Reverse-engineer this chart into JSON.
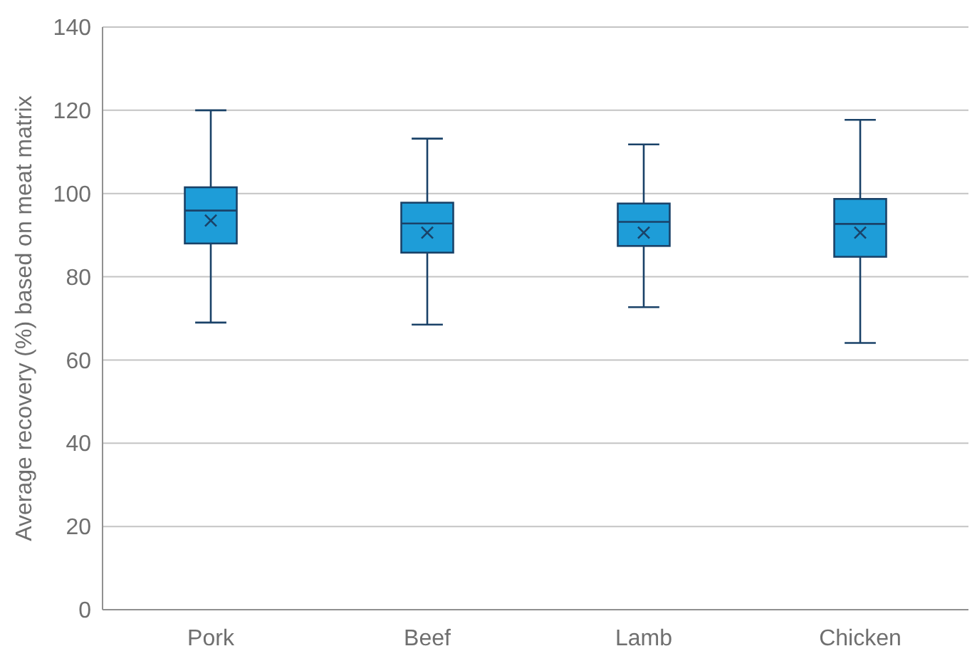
{
  "chart_data": {
    "type": "box",
    "ylabel": "Average recovery (%) based on meat matrix",
    "categories": [
      "Pork",
      "Beef",
      "Lamb",
      "Chicken"
    ],
    "color": "#1e9dd8",
    "ylim": [
      0,
      140
    ],
    "yticks": [
      0,
      20,
      40,
      60,
      80,
      100,
      120,
      140
    ],
    "grid": "y",
    "boxes": [
      {
        "low": 69,
        "q1": 88,
        "median": 95.9,
        "q3": 101.5,
        "high": 120,
        "mean": 93.5
      },
      {
        "low": 68.5,
        "q1": 85.8,
        "median": 92.8,
        "q3": 97.8,
        "high": 113.2,
        "mean": 90.6
      },
      {
        "low": 72.7,
        "q1": 87.4,
        "median": 93.2,
        "q3": 97.6,
        "high": 111.8,
        "mean": 90.6
      },
      {
        "low": 64.1,
        "q1": 84.8,
        "median": 92.7,
        "q3": 98.7,
        "high": 117.7,
        "mean": 90.6
      }
    ]
  }
}
